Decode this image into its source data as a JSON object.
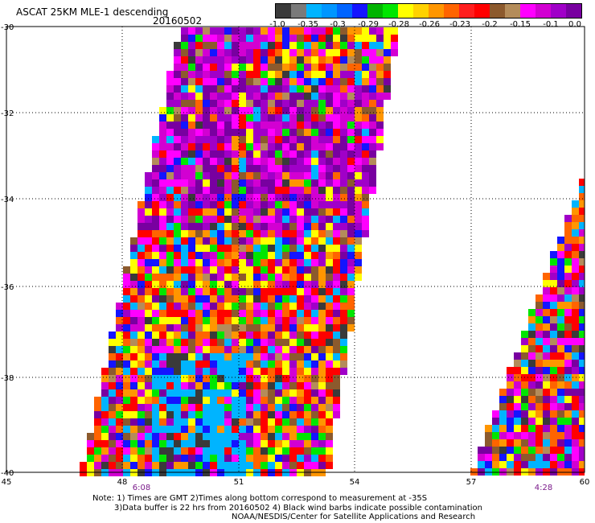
{
  "header": {
    "title": "ASCAT 25KM MLE-1 descending",
    "date": "20160502"
  },
  "colorbar": {
    "colors": [
      "#3a3a3a",
      "#7a7a7a",
      "#00b4ff",
      "#0096ff",
      "#0064ff",
      "#1414ff",
      "#00b400",
      "#00e600",
      "#ffff00",
      "#ffd200",
      "#ff9600",
      "#ff6400",
      "#ff1e1e",
      "#ff0000",
      "#8c5a2d",
      "#b48c5a",
      "#ff00ff",
      "#d200d2",
      "#a000c8",
      "#7800a0"
    ],
    "ticks": [
      "-1.0",
      "-0.35",
      "-0.3",
      "-0.29",
      "-0.28",
      "-0.26",
      "-0.23",
      "-0.2",
      "-0.15",
      "-0.1",
      "0.0"
    ]
  },
  "map": {
    "lat_labels": [
      "-30",
      "-32",
      "-34",
      "-36",
      "-38",
      "-40"
    ],
    "lon_labels": [
      "45",
      "48",
      "51",
      "54",
      "57",
      "60"
    ],
    "time_labels": [
      "6:08",
      "4:28"
    ],
    "swath_palette": [
      "#ff0000",
      "#ff6400",
      "#ff9600",
      "#ffff00",
      "#00e600",
      "#1414ff",
      "#00b4ff",
      "#3a3a3a",
      "#8c5a2d",
      "#ff00ff",
      "#d200d2",
      "#a000c8",
      "#7800a0",
      "#b48c5a"
    ]
  },
  "notes": {
    "line1": "Note: 1) Times are GMT 2)Times along bottom correspond to measurement at -35S",
    "line2": "3)Data buffer is 22 hrs from 20160502 4) Black wind barbs indicate possible contamination",
    "line3": "NOAA/NESDIS/Center for Satellite Applications and Research"
  }
}
